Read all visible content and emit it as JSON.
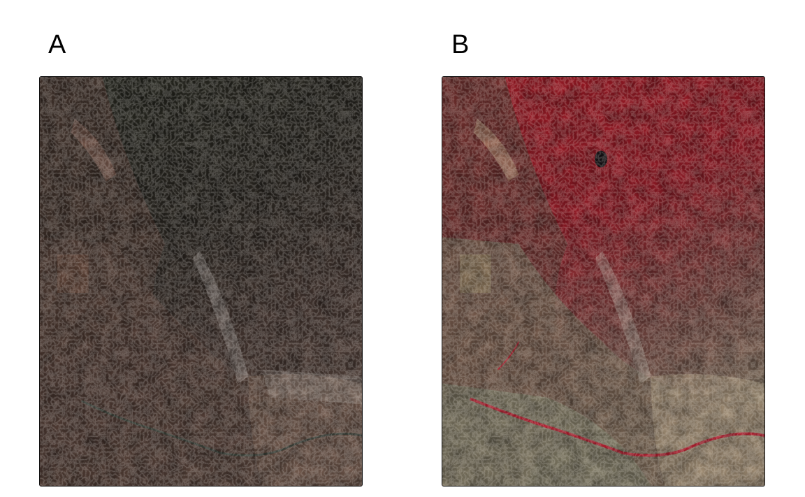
{
  "panels": [
    {
      "label": "A",
      "composite": "true-color",
      "colors": {
        "forest": "#2b2d24",
        "desert": "#6e5448",
        "canyon": "#3a2a24",
        "highlight": "#d8cfc8"
      }
    },
    {
      "label": "B",
      "composite": "false-color",
      "colors": {
        "forest": "#a81a26",
        "desert": "#8a7a66",
        "canyon": "#4a2a28",
        "highlight": "#e0d8c8",
        "water": "#d01830"
      }
    }
  ]
}
